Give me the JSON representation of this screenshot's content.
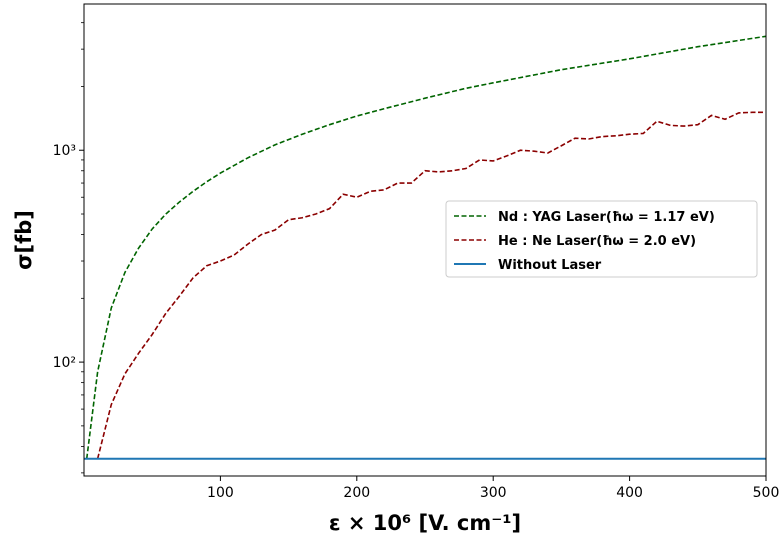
{
  "chart_data": {
    "type": "line",
    "xlabel": "ε × 10⁶ [V. cm⁻¹]",
    "ylabel": "σ[fb]",
    "yscale": "log",
    "xlim": [
      0,
      500
    ],
    "ylim": [
      29,
      4900
    ],
    "x_ticks": [
      100,
      200,
      300,
      400,
      500
    ],
    "x_tick_labels": [
      "100",
      "200",
      "300",
      "400",
      "500"
    ],
    "y_ticks": [
      100,
      1000
    ],
    "y_tick_labels": [
      "10²",
      "10³"
    ],
    "grid": false,
    "legend_position": "right",
    "series": [
      {
        "name": "Nd : YAG Laser(ħω = 1.17 eV)",
        "color": "#006400",
        "style": "dashed",
        "x": [
          2,
          10,
          20,
          30,
          40,
          50,
          60,
          70,
          80,
          90,
          100,
          120,
          140,
          160,
          180,
          200,
          220,
          250,
          280,
          300,
          350,
          400,
          450,
          500
        ],
        "y": [
          35,
          90,
          180,
          265,
          345,
          425,
          500,
          570,
          640,
          710,
          780,
          920,
          1060,
          1190,
          1320,
          1450,
          1570,
          1760,
          1960,
          2080,
          2400,
          2700,
          3080,
          3450
        ]
      },
      {
        "name": "He : Ne Laser(ħω = 2.0 eV)",
        "color": "#8b0000",
        "style": "dashed",
        "x": [
          10,
          20,
          30,
          40,
          50,
          60,
          70,
          80,
          90,
          100,
          110,
          120,
          130,
          140,
          150,
          160,
          170,
          180,
          190,
          200,
          210,
          220,
          230,
          240,
          250,
          260,
          270,
          280,
          290,
          300,
          310,
          320,
          330,
          340,
          350,
          360,
          370,
          380,
          390,
          400,
          410,
          420,
          430,
          440,
          450,
          460,
          470,
          480,
          490,
          500
        ],
        "y": [
          35,
          63,
          88,
          110,
          135,
          170,
          205,
          250,
          285,
          300,
          320,
          360,
          400,
          420,
          470,
          480,
          500,
          530,
          620,
          600,
          640,
          650,
          700,
          700,
          800,
          790,
          800,
          820,
          900,
          890,
          940,
          1000,
          990,
          970,
          1050,
          1140,
          1130,
          1160,
          1170,
          1190,
          1200,
          1370,
          1310,
          1300,
          1320,
          1460,
          1400,
          1500,
          1510,
          1510
        ]
      },
      {
        "name": "Without Laser",
        "color": "#1f77b4",
        "style": "solid",
        "x": [
          0,
          500
        ],
        "y": [
          35,
          35
        ]
      }
    ]
  }
}
